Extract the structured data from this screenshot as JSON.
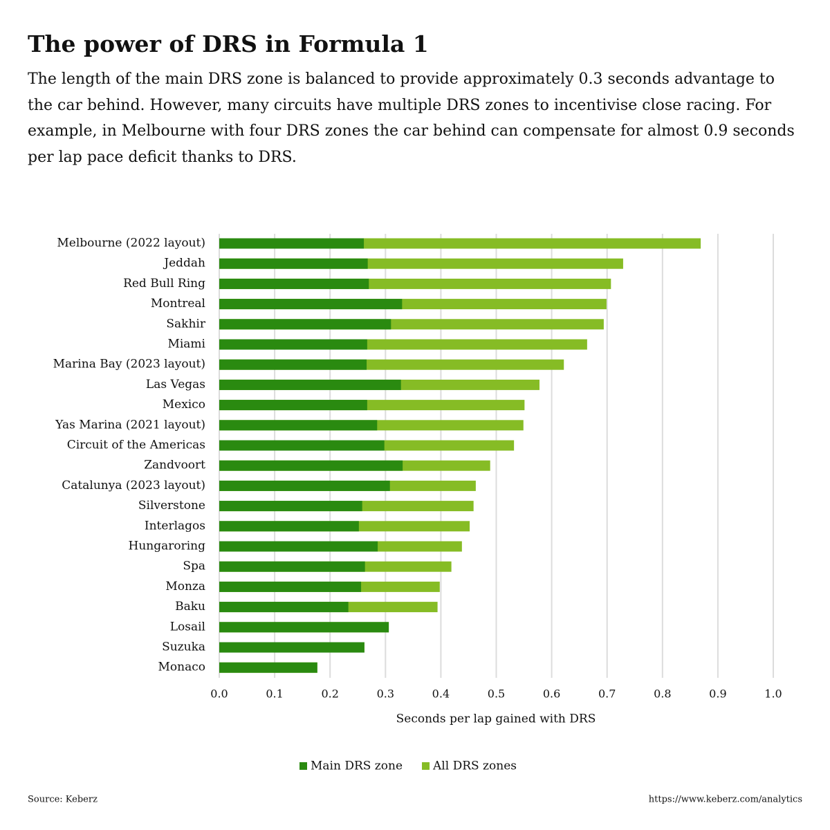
{
  "chart_data": {
    "type": "overlap-bar",
    "title": "The power of DRS in Formula 1",
    "subtitle": "The length of the main DRS zone is balanced to provide approximately 0.3 seconds advantage to the car behind. However, many circuits have multiple DRS zones to incentivise close racing. For example, in Melbourne with four DRS zones the car behind can compensate for almost 0.9 seconds per lap pace deficit thanks to DRS.",
    "categories": [
      "Melbourne (2022 layout)",
      "Jeddah",
      "Red Bull Ring",
      "Montreal",
      "Sakhir",
      "Miami",
      "Marina Bay (2023 layout)",
      "Las Vegas",
      "Mexico",
      "Yas Marina (2021 layout)",
      "Circuit of the Americas",
      "Zandvoort",
      "Catalunya (2023 layout)",
      "Silverstone",
      "Interlagos",
      "Hungaroring",
      "Spa",
      "Monza",
      "Baku",
      "Losail",
      "Suzuka",
      "Monaco"
    ],
    "series": [
      {
        "name": "Main DRS zone",
        "color": "#2a8a10",
        "values": [
          0.261,
          0.268,
          0.27,
          0.33,
          0.31,
          0.267,
          0.266,
          0.328,
          0.267,
          0.285,
          0.298,
          0.331,
          0.308,
          0.258,
          0.252,
          0.286,
          0.263,
          0.256,
          0.233,
          0.306,
          0.262,
          0.177
        ]
      },
      {
        "name": "All DRS zones",
        "color": "#86bc25",
        "values": [
          0.869,
          0.729,
          0.707,
          0.699,
          0.694,
          0.664,
          0.622,
          0.578,
          0.551,
          0.549,
          0.532,
          0.489,
          0.463,
          0.459,
          0.452,
          0.438,
          0.419,
          0.398,
          0.394,
          0.306,
          0.262,
          0.177
        ]
      }
    ],
    "x_label": "Seconds per lap gained with DRS",
    "xlim": [
      0,
      1
    ],
    "xticks": [
      {
        "value": 0,
        "label": "0.0"
      },
      0.1,
      0.2,
      0.3,
      0.4,
      0.5,
      0.6,
      0.7,
      0.8,
      0.9,
      {
        "value": 1,
        "label": "1.0"
      }
    ],
    "grid": true,
    "legend": "bottom",
    "source": "Source: Keberz",
    "url": "https://www.keberz.com/analytics"
  }
}
